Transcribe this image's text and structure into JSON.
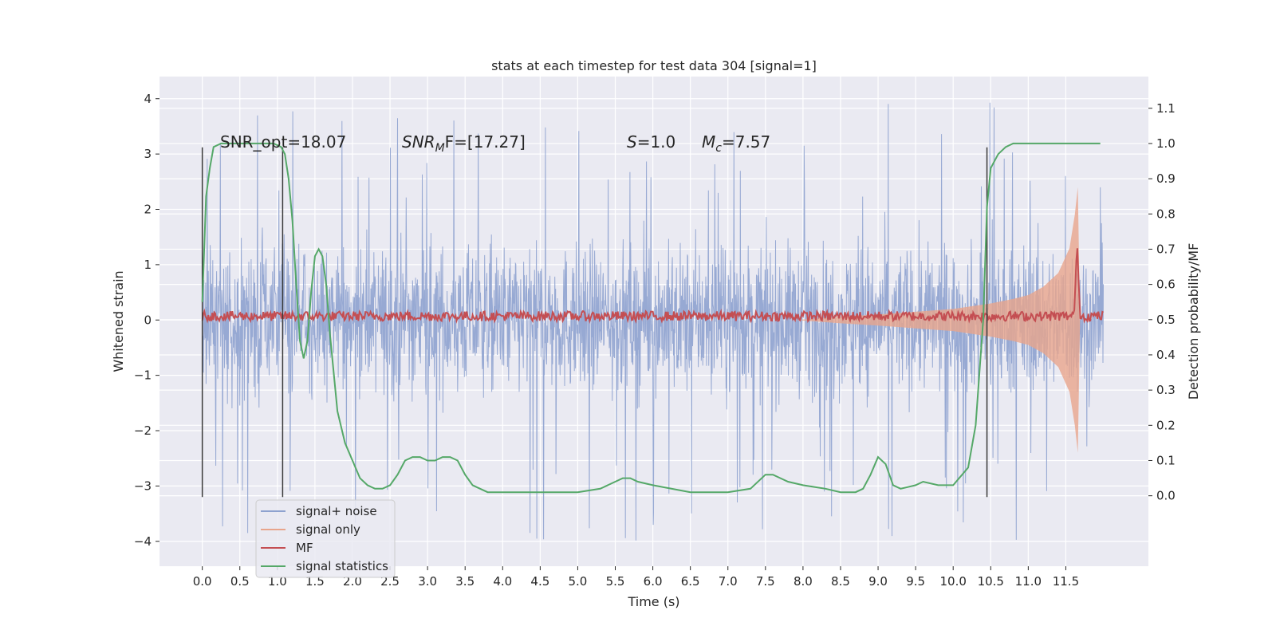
{
  "chart_data": {
    "type": "line",
    "title": "stats at each timestep for test data 304 [signal=1]",
    "xlabel": "Time (s)",
    "ylabel": "Whitened strain",
    "ylabel_right": "Detection probability/MF",
    "xlim": [
      -0.57,
      12.6
    ],
    "ylim": [
      -4.45,
      4.4
    ],
    "ylim_right": [
      -0.2,
      1.19
    ],
    "x_ticks": [
      0.0,
      0.5,
      1.0,
      1.5,
      2.0,
      2.5,
      3.0,
      3.5,
      4.0,
      4.5,
      5.0,
      5.5,
      6.0,
      6.5,
      7.0,
      7.5,
      8.0,
      8.5,
      9.0,
      9.5,
      10.0,
      10.5,
      11.0,
      11.5
    ],
    "x_tick_labels": [
      "0.0",
      "0.5",
      "1.0",
      "1.5",
      "2.0",
      "2.5",
      "3.0",
      "3.5",
      "4.0",
      "4.5",
      "5.0",
      "5.5",
      "6.0",
      "6.5",
      "7.0",
      "7.5",
      "8.0",
      "8.5",
      "9.0",
      "9.5",
      "10.0",
      "10.5",
      "11.0",
      "11.5"
    ],
    "y_ticks": [
      -4,
      -3,
      -2,
      -1,
      0,
      1,
      2,
      3,
      4
    ],
    "y_tick_labels": [
      "−4",
      "−3",
      "−2",
      "−1",
      "0",
      "1",
      "2",
      "3",
      "4"
    ],
    "y_right_ticks": [
      0.0,
      0.1,
      0.2,
      0.3,
      0.4,
      0.5,
      0.6,
      0.7,
      0.8,
      0.9,
      1.0,
      1.1
    ],
    "y_right_tick_labels": [
      "0.0",
      "0.1",
      "0.2",
      "0.3",
      "0.4",
      "0.5",
      "0.6",
      "0.7",
      "0.8",
      "0.9",
      "1.0",
      "1.1"
    ],
    "grid": true,
    "legend_placement": "lower-left",
    "annotations": {
      "snr_opt": "SNR_opt=18.07",
      "snr_mf_prefix": "SNR",
      "snr_mf_sub": "M",
      "snr_mf_rest": "F=[17.27]",
      "s_italic": "S",
      "s_rest": "=1.0",
      "mc_italic": "M",
      "mc_sub": "c",
      "mc_rest": "=7.57"
    },
    "vertical_markers": [
      0.0,
      1.07,
      10.45
    ],
    "series": [
      {
        "name": "signal+ noise",
        "axis": "left",
        "color": "#8ea2cf",
        "x_range": [
          0.0,
          12.0
        ],
        "envelope": {
          "typical_amplitude": 1.3,
          "peak_amplitude": 4.0
        }
      },
      {
        "name": "signal only",
        "axis": "left",
        "color": "#e8a58c",
        "envelope": {
          "x": [
            7.9,
            8.5,
            9.0,
            9.5,
            10.0,
            10.5,
            10.8,
            11.0,
            11.2,
            11.4,
            11.55,
            11.62,
            11.66,
            11.69
          ],
          "amplitude": [
            0.0,
            0.06,
            0.1,
            0.15,
            0.2,
            0.3,
            0.38,
            0.45,
            0.6,
            0.85,
            1.3,
            1.9,
            2.4,
            0.0
          ]
        }
      },
      {
        "name": "MF",
        "axis": "right",
        "color": "#c44e52",
        "baseline": 0.51,
        "spike": {
          "x": 11.65,
          "y": 0.72
        }
      },
      {
        "name": "signal statistics",
        "axis": "right",
        "color": "#55a868",
        "x": [
          0.0,
          0.05,
          0.1,
          0.15,
          0.25,
          0.4,
          0.6,
          0.8,
          0.95,
          1.05,
          1.1,
          1.15,
          1.2,
          1.25,
          1.3,
          1.35,
          1.4,
          1.45,
          1.5,
          1.55,
          1.6,
          1.65,
          1.7,
          1.75,
          1.8,
          1.9,
          2.0,
          2.1,
          2.2,
          2.3,
          2.4,
          2.5,
          2.6,
          2.7,
          2.8,
          2.9,
          3.0,
          3.1,
          3.2,
          3.3,
          3.4,
          3.5,
          3.6,
          3.7,
          3.8,
          3.9,
          4.0,
          4.2,
          4.5,
          4.8,
          5.0,
          5.3,
          5.5,
          5.6,
          5.7,
          5.8,
          6.0,
          6.5,
          7.0,
          7.3,
          7.5,
          7.6,
          7.7,
          7.8,
          8.0,
          8.3,
          8.5,
          8.7,
          8.8,
          8.9,
          9.0,
          9.1,
          9.2,
          9.3,
          9.5,
          9.6,
          9.8,
          10.0,
          10.2,
          10.3,
          10.4,
          10.45,
          10.5,
          10.6,
          10.7,
          10.8,
          11.0,
          11.5,
          11.96
        ],
        "y": [
          0.55,
          0.85,
          0.93,
          0.99,
          1.0,
          1.0,
          1.0,
          1.0,
          1.0,
          0.99,
          0.97,
          0.9,
          0.78,
          0.6,
          0.44,
          0.39,
          0.44,
          0.58,
          0.68,
          0.7,
          0.68,
          0.6,
          0.46,
          0.35,
          0.24,
          0.15,
          0.1,
          0.05,
          0.03,
          0.02,
          0.02,
          0.03,
          0.06,
          0.1,
          0.11,
          0.11,
          0.1,
          0.1,
          0.11,
          0.11,
          0.1,
          0.06,
          0.03,
          0.02,
          0.01,
          0.01,
          0.01,
          0.01,
          0.01,
          0.01,
          0.01,
          0.02,
          0.04,
          0.05,
          0.05,
          0.04,
          0.03,
          0.01,
          0.01,
          0.02,
          0.06,
          0.06,
          0.05,
          0.04,
          0.03,
          0.02,
          0.01,
          0.01,
          0.02,
          0.06,
          0.11,
          0.09,
          0.03,
          0.02,
          0.03,
          0.04,
          0.03,
          0.03,
          0.08,
          0.2,
          0.5,
          0.82,
          0.93,
          0.97,
          0.99,
          1.0,
          1.0,
          1.0,
          1.0
        ]
      }
    ]
  }
}
